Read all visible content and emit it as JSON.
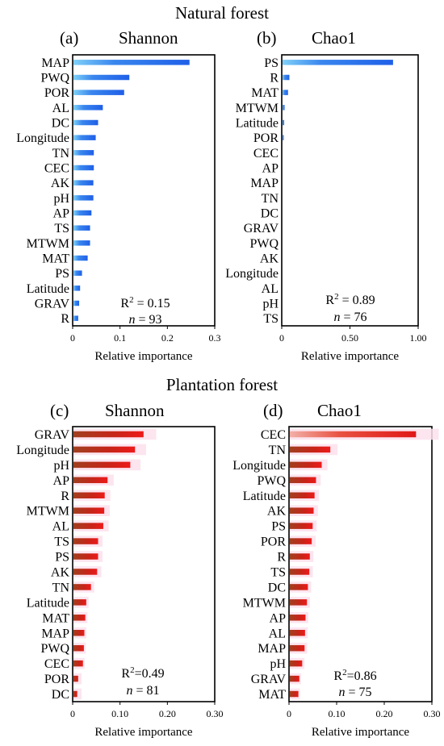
{
  "section_titles": [
    "Natural forest",
    "Plantation forest"
  ],
  "chart_data": [
    {
      "type": "bar",
      "panel": "(a)",
      "title": "Shannon",
      "xlabel": "Relative importance",
      "xlim": [
        0,
        0.3
      ],
      "xticks": [
        "0",
        "0.1",
        "0.2",
        "0.3"
      ],
      "xtick_values": [
        0,
        0.1,
        0.2,
        0.3
      ],
      "bar_color": "#1f5fe8",
      "categories": [
        "MAP",
        "PWQ",
        "POR",
        "AL",
        "DC",
        "Longitude",
        "TN",
        "CEC",
        "AK",
        "pH",
        "AP",
        "TS",
        "MTWM",
        "MAT",
        "PS",
        "Latitude",
        "GRAV",
        "R"
      ],
      "values": [
        0.245,
        0.118,
        0.107,
        0.062,
        0.052,
        0.047,
        0.043,
        0.043,
        0.042,
        0.042,
        0.038,
        0.035,
        0.035,
        0.03,
        0.018,
        0.014,
        0.012,
        0.01
      ],
      "r2_prefix": "R",
      "r2_sup": "2",
      "r2_text": " = 0.15",
      "n_label": "n",
      "n_text": " = 93"
    },
    {
      "type": "bar",
      "panel": "(b)",
      "title": "Chao1",
      "xlabel": "Relative importance",
      "xlim": [
        0,
        1.0
      ],
      "xticks": [
        "0",
        "0.50",
        "1.00"
      ],
      "xtick_values": [
        0,
        0.5,
        1.0
      ],
      "bar_color": "#1f5fe8",
      "categories": [
        "PS",
        "R",
        "MAT",
        "MTWM",
        "Latitude",
        "POR",
        "CEC",
        "AP",
        "MAP",
        "TN",
        "DC",
        "GRAV",
        "PWQ",
        "AK",
        "Longitude",
        "AL",
        "pH",
        "TS"
      ],
      "values": [
        0.81,
        0.05,
        0.04,
        0.015,
        0.012,
        0.008,
        0,
        0,
        0,
        0,
        0,
        0,
        0,
        0,
        0,
        0,
        0,
        0
      ],
      "r2_prefix": "R",
      "r2_sup": "2",
      "r2_text": " = 0.89",
      "n_label": "n",
      "n_text": " = 76"
    },
    {
      "type": "bar",
      "panel": "(c)",
      "title": "Shannon",
      "xlabel": "Relative importance",
      "xlim": [
        0,
        0.3
      ],
      "xticks": [
        "0",
        "0.10",
        "0.20",
        "0.30"
      ],
      "xtick_values": [
        0,
        0.1,
        0.2,
        0.3
      ],
      "bar_color": "#e02020",
      "categories": [
        "GRAV",
        "Longitude",
        "pH",
        "AP",
        "R",
        "MTWM",
        "AL",
        "TS",
        "PS",
        "AK",
        "TN",
        "Latitude",
        "MAT",
        "MAP",
        "PWQ",
        "CEC",
        "POR",
        "DC"
      ],
      "values": [
        0.148,
        0.13,
        0.12,
        0.072,
        0.066,
        0.065,
        0.063,
        0.052,
        0.052,
        0.05,
        0.037,
        0.027,
        0.025,
        0.023,
        0.022,
        0.02,
        0.01,
        0.008
      ],
      "r2_prefix": "R",
      "r2_sup": "2",
      "r2_text": "=0.49",
      "n_label": "n",
      "n_text": " = 81"
    },
    {
      "type": "bar",
      "panel": "(d)",
      "title": "Chao1",
      "xlabel": "Relative importance",
      "xlim": [
        0,
        0.3
      ],
      "xticks": [
        "0",
        "0.10",
        "0.20",
        "0.30"
      ],
      "xtick_values": [
        0,
        0.1,
        0.2,
        0.3
      ],
      "bar_color": "#e02020",
      "categories": [
        "CEC",
        "TN",
        "Longitude",
        "PWQ",
        "Latitude",
        "AK",
        "PS",
        "POR",
        "R",
        "TS",
        "DC",
        "MTWM",
        "AP",
        "AL",
        "MAP",
        "pH",
        "GRAV",
        "MAT"
      ],
      "values": [
        0.265,
        0.085,
        0.067,
        0.055,
        0.052,
        0.05,
        0.048,
        0.046,
        0.042,
        0.041,
        0.038,
        0.036,
        0.033,
        0.032,
        0.031,
        0.026,
        0.02,
        0.018
      ],
      "r2_prefix": "R",
      "r2_sup": "2",
      "r2_text": "=0.86",
      "n_label": "n",
      "n_text": " = 75"
    }
  ]
}
